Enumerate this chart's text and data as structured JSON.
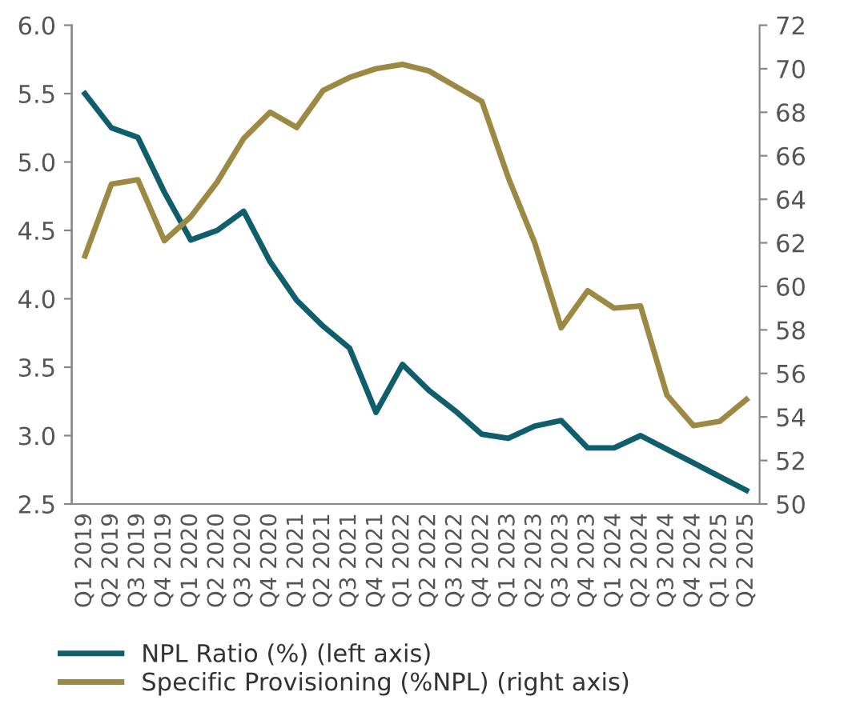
{
  "chart_data": {
    "type": "line",
    "categories": [
      "Q1 2019",
      "Q2 2019",
      "Q3 2019",
      "Q4 2019",
      "Q1 2020",
      "Q2 2020",
      "Q3 2020",
      "Q4 2020",
      "Q1 2021",
      "Q2 2021",
      "Q3 2021",
      "Q4 2021",
      "Q1 2022",
      "Q2 2022",
      "Q3 2022",
      "Q4 2022",
      "Q1 2023",
      "Q2 2023",
      "Q3 2023",
      "Q4 2023",
      "Q1 2024",
      "Q2 2024",
      "Q3 2024",
      "Q4 2024",
      "Q1 2025",
      "Q2 2025"
    ],
    "series": [
      {
        "name": "NPL Ratio (%) (left axis)",
        "color": "#0f5e6b",
        "values": [
          5.5,
          5.25,
          5.18,
          4.78,
          4.43,
          4.5,
          4.64,
          4.27,
          3.99,
          3.8,
          3.64,
          3.17,
          3.52,
          3.33,
          3.18,
          3.01,
          2.98,
          3.07,
          3.11,
          2.91,
          2.91,
          3.0,
          2.9,
          2.8,
          2.7,
          2.6
        ]
      },
      {
        "name": "Specific Provisioning (%NPL) (right axis)",
        "color": "#9c8a44",
        "axis": "y2",
        "values": [
          61.4,
          64.7,
          64.9,
          62.1,
          63.2,
          64.8,
          66.8,
          68.0,
          67.3,
          69.0,
          69.6,
          70.0,
          70.2,
          69.9,
          69.2,
          68.5,
          65.0,
          62.0,
          58.1,
          59.8,
          59.0,
          59.1,
          55.0,
          53.6,
          53.8,
          54.8
        ]
      }
    ],
    "ylim": [
      2.5,
      6.0
    ],
    "yticks": [
      {
        "value": 2.5,
        "label": "2.5"
      },
      {
        "value": 3.0,
        "label": "3.0"
      },
      {
        "value": 3.5,
        "label": "3.5"
      },
      {
        "value": 4.0,
        "label": "4.0"
      },
      {
        "value": 4.5,
        "label": "4.5"
      },
      {
        "value": 5.0,
        "label": "5.0"
      },
      {
        "value": 5.5,
        "label": "5.5"
      },
      {
        "value": 6.0,
        "label": "6.0"
      }
    ],
    "y2lim": [
      50,
      72
    ],
    "y2ticks": [
      50,
      52,
      54,
      56,
      58,
      60,
      62,
      64,
      66,
      68,
      70,
      72
    ],
    "legend": "bottom",
    "grid": false,
    "marker": "none",
    "line_style": "solid"
  }
}
